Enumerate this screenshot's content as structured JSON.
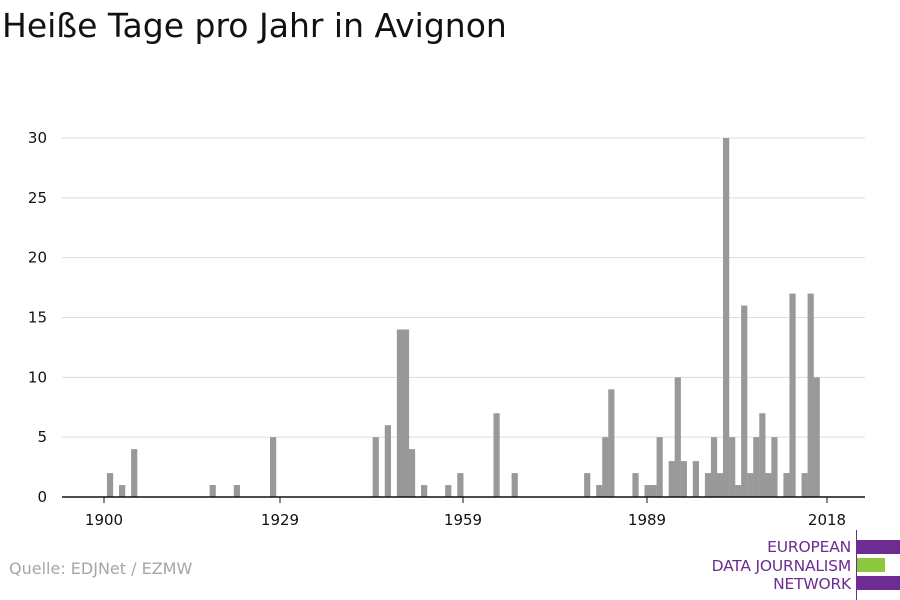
{
  "title": "Heiße Tage pro Jahr in Avignon",
  "source": "Quelle: EDJNet / EZMW",
  "logo": {
    "lines": [
      "EUROPEAN",
      "DATA JOURNALISM",
      "NETWORK"
    ],
    "colors": {
      "purple": "#6c2c91",
      "green": "#8dc63f"
    }
  },
  "chart_data": {
    "type": "bar",
    "title": "Heiße Tage pro Jahr in Avignon",
    "xlabel": "",
    "ylabel": "",
    "xlim": [
      1900,
      2018
    ],
    "ylim": [
      0,
      30
    ],
    "yticks": [
      0,
      5,
      10,
      15,
      20,
      25,
      30
    ],
    "xticks": [
      1900,
      1929,
      1959,
      1989,
      2018
    ],
    "grid": true,
    "legend": "none",
    "bar_color": "#999999",
    "x": [
      1901,
      1903,
      1905,
      1918,
      1922,
      1928,
      1945,
      1947,
      1949,
      1950,
      1951,
      1953,
      1957,
      1959,
      1965,
      1968,
      1980,
      1982,
      1983,
      1984,
      1988,
      1990,
      1991,
      1992,
      1994,
      1995,
      1996,
      1998,
      2000,
      2001,
      2002,
      2003,
      2004,
      2005,
      2006,
      2007,
      2008,
      2009,
      2010,
      2011,
      2013,
      2014,
      2016,
      2017,
      2018,
      2019
    ],
    "values": [
      2,
      1,
      4,
      1,
      1,
      5,
      5,
      6,
      14,
      14,
      4,
      1,
      1,
      2,
      7,
      2,
      2,
      1,
      5,
      9,
      2,
      1,
      1,
      5,
      3,
      10,
      3,
      3,
      2,
      5,
      2,
      30,
      5,
      1,
      16,
      2,
      5,
      7,
      2,
      5,
      2,
      17,
      2,
      17,
      10,
      0
    ]
  }
}
